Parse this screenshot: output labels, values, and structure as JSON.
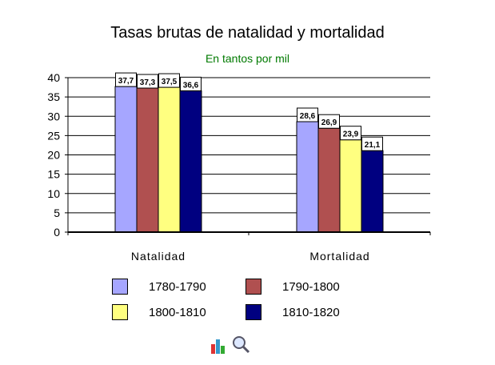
{
  "chart_data": {
    "type": "bar",
    "title": "Tasas brutas de natalidad y mortalidad",
    "subtitle": "En tantos por mil",
    "categories": [
      "Natalidad",
      "Mortalidad"
    ],
    "series": [
      {
        "name": "1780-1790",
        "values": [
          37.7,
          28.6
        ],
        "labels": [
          "37,7",
          "28,6"
        ],
        "color": "#a6a6ff"
      },
      {
        "name": "1790-1800",
        "values": [
          37.3,
          26.9
        ],
        "labels": [
          "37,3",
          "26,9"
        ],
        "color": "#b05050"
      },
      {
        "name": "1800-1810",
        "values": [
          37.5,
          23.9
        ],
        "labels": [
          "37,5",
          "23,9"
        ],
        "color": "#ffff80"
      },
      {
        "name": "1810-1820",
        "values": [
          36.6,
          21.1
        ],
        "labels": [
          "36,6",
          "21,1"
        ],
        "color": "#000080"
      }
    ],
    "yticks": [
      "0",
      "5",
      "10",
      "15",
      "20",
      "25",
      "30",
      "35",
      "40"
    ],
    "ylim": [
      0,
      40
    ],
    "grid": true,
    "legend_position": "bottom"
  },
  "toolbar": {
    "icon": "chart-zoom-icon"
  }
}
